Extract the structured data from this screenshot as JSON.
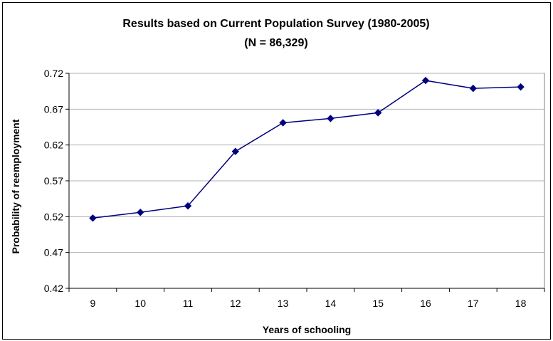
{
  "chart_data": {
    "type": "line",
    "title": "Results based on Current Population Survey (1980-2005)",
    "subtitle": "(N = 86,329)",
    "xlabel": "Years of schooling",
    "ylabel": "Probability of reemployment",
    "categories": [
      "9",
      "10",
      "11",
      "12",
      "13",
      "14",
      "15",
      "16",
      "17",
      "18"
    ],
    "y_ticks": [
      "0.42",
      "0.47",
      "0.52",
      "0.57",
      "0.62",
      "0.67",
      "0.72"
    ],
    "ylim": [
      0.42,
      0.72
    ],
    "grid": "horizontal",
    "legend": "none",
    "series": [
      {
        "values": [
          0.518,
          0.526,
          0.535,
          0.611,
          0.651,
          0.657,
          0.665,
          0.71,
          0.699,
          0.701
        ],
        "color": "#000080"
      }
    ]
  }
}
